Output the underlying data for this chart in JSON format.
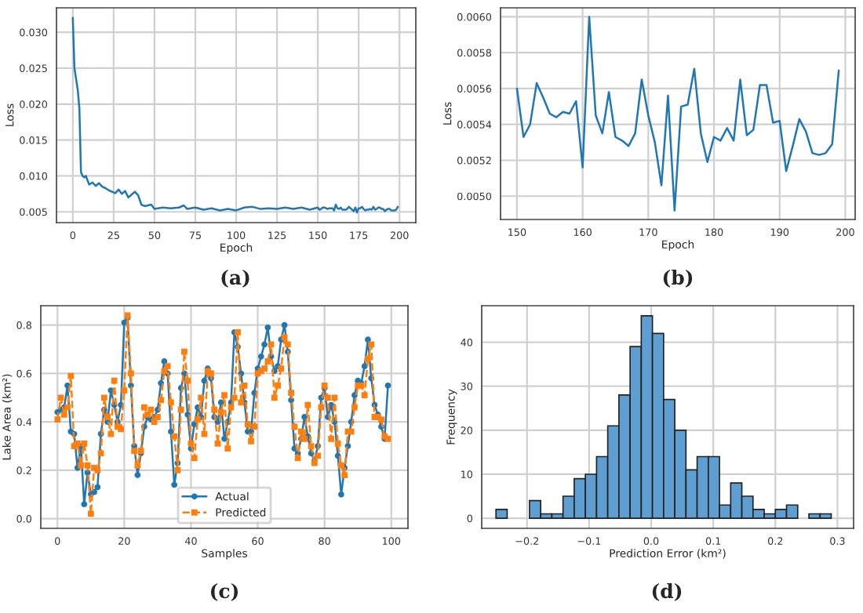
{
  "chart_data": [
    {
      "type": "line",
      "xlabel": "Epoch",
      "ylabel": "Loss",
      "annotations": [
        "(a)"
      ],
      "grid": true,
      "xlim": [
        -10,
        210
      ],
      "ylim": [
        0.0035,
        0.0334
      ],
      "xticks": [
        0,
        25,
        50,
        75,
        100,
        125,
        150,
        175,
        200
      ],
      "yticks": [
        {
          "value": 0.005,
          "label": "0.005"
        },
        {
          "value": 0.01,
          "label": "0.010"
        },
        {
          "value": 0.015,
          "label": "0.015"
        },
        {
          "value": 0.02,
          "label": "0.020"
        },
        {
          "value": 0.025,
          "label": "0.025"
        },
        {
          "value": 0.03,
          "label": "0.030"
        }
      ],
      "series": [
        {
          "color": "#1f77b4",
          "x": [
            0,
            1,
            2,
            3,
            4,
            5,
            6,
            7,
            8,
            9,
            10,
            12,
            14,
            16,
            18,
            20,
            22,
            24,
            26,
            28,
            30,
            32,
            34,
            36,
            38,
            40,
            42,
            44,
            46,
            48,
            50,
            55,
            60,
            65,
            68,
            70,
            75,
            80,
            85,
            90,
            95,
            100,
            105,
            110,
            115,
            120,
            125,
            130,
            135,
            140,
            145,
            150,
            151,
            152,
            153,
            154,
            155,
            156,
            157,
            158,
            159,
            160,
            161,
            162,
            163,
            164,
            165,
            166,
            167,
            168,
            169,
            170,
            171,
            172,
            173,
            174,
            175,
            176,
            177,
            178,
            179,
            180,
            181,
            182,
            183,
            184,
            185,
            186,
            187,
            188,
            189,
            190,
            191,
            192,
            193,
            194,
            195,
            196,
            197,
            198,
            199
          ],
          "values": [
            0.032,
            0.025,
            0.0235,
            0.022,
            0.0195,
            0.0105,
            0.01,
            0.0098,
            0.01,
            0.0094,
            0.0088,
            0.0091,
            0.0086,
            0.009,
            0.0085,
            0.0083,
            0.008,
            0.0078,
            0.0076,
            0.0081,
            0.0075,
            0.0079,
            0.007,
            0.0074,
            0.0078,
            0.0073,
            0.006,
            0.0058,
            0.0059,
            0.006,
            0.0054,
            0.0056,
            0.0055,
            0.0056,
            0.0059,
            0.0054,
            0.0056,
            0.0053,
            0.0055,
            0.0052,
            0.0054,
            0.0052,
            0.0056,
            0.0057,
            0.0054,
            0.0055,
            0.0054,
            0.0056,
            0.0054,
            0.0056,
            0.0053,
            0.0056,
            0.0053,
            0.0054,
            0.0056,
            0.0056,
            0.0055,
            0.0054,
            0.0055,
            0.0055,
            0.0055,
            0.0052,
            0.006,
            0.0055,
            0.0054,
            0.0056,
            0.0053,
            0.0053,
            0.0053,
            0.0054,
            0.0057,
            0.0055,
            0.0053,
            0.0051,
            0.0056,
            0.0049,
            0.0055,
            0.0055,
            0.0057,
            0.0054,
            0.0052,
            0.0053,
            0.0053,
            0.0054,
            0.0053,
            0.0057,
            0.0053,
            0.0054,
            0.0056,
            0.0056,
            0.0054,
            0.0054,
            0.0051,
            0.0053,
            0.0054,
            0.0054,
            0.0052,
            0.0052,
            0.0052,
            0.0053,
            0.0057
          ]
        }
      ]
    },
    {
      "type": "line",
      "xlabel": "Epoch",
      "ylabel": "Loss",
      "annotations": [
        "(b)"
      ],
      "grid": true,
      "xlim": [
        147.5,
        201.5
      ],
      "ylim": [
        0.00487,
        0.00605
      ],
      "xticks": [
        150,
        160,
        170,
        180,
        190,
        200
      ],
      "yticks": [
        {
          "value": 0.005,
          "label": "0.0050"
        },
        {
          "value": 0.0052,
          "label": "0.0052"
        },
        {
          "value": 0.0054,
          "label": "0.0054"
        },
        {
          "value": 0.0056,
          "label": "0.0056"
        },
        {
          "value": 0.0058,
          "label": "0.0058"
        },
        {
          "value": 0.006,
          "label": "0.0060"
        }
      ],
      "series": [
        {
          "color": "#1f77b4",
          "x": [
            150,
            151,
            152,
            153,
            154,
            155,
            156,
            157,
            158,
            159,
            160,
            161,
            162,
            163,
            164,
            165,
            166,
            167,
            168,
            169,
            170,
            171,
            172,
            173,
            174,
            175,
            176,
            177,
            178,
            179,
            180,
            181,
            182,
            183,
            184,
            185,
            186,
            187,
            188,
            189,
            190,
            191,
            192,
            193,
            194,
            195,
            196,
            197,
            198,
            199
          ],
          "values": [
            0.0056,
            0.00533,
            0.0054,
            0.00563,
            0.00555,
            0.00546,
            0.00544,
            0.00547,
            0.00546,
            0.00553,
            0.00516,
            0.006,
            0.00545,
            0.00535,
            0.00558,
            0.00533,
            0.00531,
            0.00528,
            0.00535,
            0.00565,
            0.00545,
            0.0053,
            0.00506,
            0.00556,
            0.00492,
            0.0055,
            0.00551,
            0.00571,
            0.00535,
            0.00519,
            0.00533,
            0.00531,
            0.00538,
            0.00531,
            0.00565,
            0.00534,
            0.00537,
            0.00562,
            0.00562,
            0.00541,
            0.00542,
            0.00514,
            0.00528,
            0.00543,
            0.00536,
            0.00524,
            0.00523,
            0.00524,
            0.00529,
            0.0057
          ]
        }
      ]
    },
    {
      "type": "line",
      "xlabel": "Samples",
      "ylabel": "Lake Area (km²)",
      "annotations": [
        "(c)"
      ],
      "grid": true,
      "legend": "bottom",
      "xlim": [
        -5,
        105
      ],
      "ylim": [
        -0.04,
        0.88
      ],
      "xticks": [
        0,
        20,
        40,
        60,
        80,
        100
      ],
      "yticks": [
        {
          "value": 0.0,
          "label": "0.0"
        },
        0.2,
        0.4,
        0.6,
        0.8
      ],
      "x": [
        0,
        1,
        2,
        3,
        4,
        5,
        6,
        7,
        8,
        9,
        10,
        11,
        12,
        13,
        14,
        15,
        16,
        17,
        18,
        19,
        20,
        21,
        22,
        23,
        24,
        25,
        26,
        27,
        28,
        29,
        30,
        31,
        32,
        33,
        34,
        35,
        36,
        37,
        38,
        39,
        40,
        41,
        42,
        43,
        44,
        45,
        46,
        47,
        48,
        49,
        50,
        51,
        52,
        53,
        54,
        55,
        56,
        57,
        58,
        59,
        60,
        61,
        62,
        63,
        64,
        65,
        66,
        67,
        68,
        69,
        70,
        71,
        72,
        73,
        74,
        75,
        76,
        77,
        78,
        79,
        80,
        81,
        82,
        83,
        84,
        85,
        86,
        87,
        88,
        89,
        90,
        91,
        92,
        93,
        94,
        95,
        96,
        97,
        98,
        99
      ],
      "series": [
        {
          "name": "Actual",
          "color": "#1f77b4",
          "marker": "circle",
          "line_style": "solid",
          "values": [
            0.44,
            0.45,
            0.46,
            0.55,
            0.36,
            0.35,
            0.21,
            0.3,
            0.06,
            0.19,
            0.1,
            0.11,
            0.13,
            0.35,
            0.45,
            0.4,
            0.53,
            0.47,
            0.4,
            0.47,
            0.81,
            0.83,
            0.55,
            0.3,
            0.18,
            0.27,
            0.38,
            0.42,
            0.41,
            0.42,
            0.45,
            0.56,
            0.65,
            0.6,
            0.36,
            0.14,
            0.23,
            0.54,
            0.6,
            0.43,
            0.29,
            0.39,
            0.46,
            0.42,
            0.57,
            0.62,
            0.58,
            0.42,
            0.4,
            0.48,
            0.33,
            0.4,
            0.48,
            0.77,
            0.71,
            0.6,
            0.48,
            0.36,
            0.36,
            0.52,
            0.62,
            0.67,
            0.72,
            0.79,
            0.67,
            0.61,
            0.63,
            0.74,
            0.8,
            0.69,
            0.49,
            0.29,
            0.27,
            0.33,
            0.42,
            0.34,
            0.27,
            0.24,
            0.3,
            0.5,
            0.54,
            0.42,
            0.47,
            0.4,
            0.26,
            0.1,
            0.21,
            0.3,
            0.4,
            0.51,
            0.57,
            0.56,
            0.63,
            0.74,
            0.58,
            0.47,
            0.43,
            0.38,
            0.33,
            0.55
          ]
        },
        {
          "name": "Predicted",
          "color": "#ff7f0e",
          "marker": "square",
          "line_style": "dashed",
          "values": [
            0.41,
            0.5,
            0.43,
            0.46,
            0.59,
            0.3,
            0.31,
            0.22,
            0.31,
            0.22,
            0.02,
            0.21,
            0.2,
            0.27,
            0.5,
            0.42,
            0.35,
            0.57,
            0.38,
            0.37,
            0.53,
            0.84,
            0.6,
            0.28,
            0.22,
            0.28,
            0.46,
            0.43,
            0.45,
            0.4,
            0.42,
            0.49,
            0.61,
            0.63,
            0.48,
            0.34,
            0.2,
            0.45,
            0.69,
            0.57,
            0.31,
            0.25,
            0.41,
            0.5,
            0.35,
            0.61,
            0.6,
            0.45,
            0.31,
            0.44,
            0.51,
            0.29,
            0.46,
            0.5,
            0.77,
            0.48,
            0.55,
            0.39,
            0.32,
            0.38,
            0.6,
            0.61,
            0.62,
            0.65,
            0.72,
            0.5,
            0.55,
            0.62,
            0.75,
            0.72,
            0.52,
            0.38,
            0.25,
            0.36,
            0.33,
            0.47,
            0.3,
            0.23,
            0.26,
            0.46,
            0.55,
            0.5,
            0.33,
            0.5,
            0.31,
            0.22,
            0.18,
            0.36,
            0.36,
            0.46,
            0.55,
            0.55,
            0.51,
            0.66,
            0.72,
            0.42,
            0.42,
            0.41,
            0.34,
            0.33
          ]
        }
      ]
    },
    {
      "type": "histogram",
      "xlabel": "Prediction Error (km²)",
      "ylabel": "Frequency",
      "annotations": [
        "(d)"
      ],
      "grid": true,
      "color": "#5f9ed1",
      "xlim": [
        -0.273,
        0.326
      ],
      "ylim": [
        -2.3,
        48.3
      ],
      "xticks": [
        {
          "value": -0.2,
          "label": "−0.2"
        },
        {
          "value": -0.1,
          "label": "−0.1"
        },
        {
          "value": 0.0,
          "label": "0.0"
        },
        {
          "value": 0.1,
          "label": "0.1"
        },
        {
          "value": 0.2,
          "label": "0.2"
        },
        {
          "value": 0.3,
          "label": "0.3"
        }
      ],
      "yticks": [
        0,
        10,
        20,
        30,
        40
      ],
      "bins": [
        -0.25,
        -0.232,
        -0.214,
        -0.196,
        -0.178,
        -0.16,
        -0.142,
        -0.124,
        -0.106,
        -0.088,
        -0.07,
        -0.052,
        -0.034,
        -0.016,
        0.002,
        0.02,
        0.038,
        0.056,
        0.074,
        0.092,
        0.11,
        0.128,
        0.146,
        0.164,
        0.182,
        0.2,
        0.218,
        0.236,
        0.254,
        0.272,
        0.29
      ],
      "values": [
        2,
        0,
        0,
        4,
        1,
        1,
        5,
        9,
        10,
        14,
        21,
        28,
        39,
        46,
        42,
        27,
        20,
        11,
        14,
        14,
        3,
        8,
        5,
        2,
        1,
        2,
        3,
        0,
        1,
        1
      ]
    }
  ]
}
